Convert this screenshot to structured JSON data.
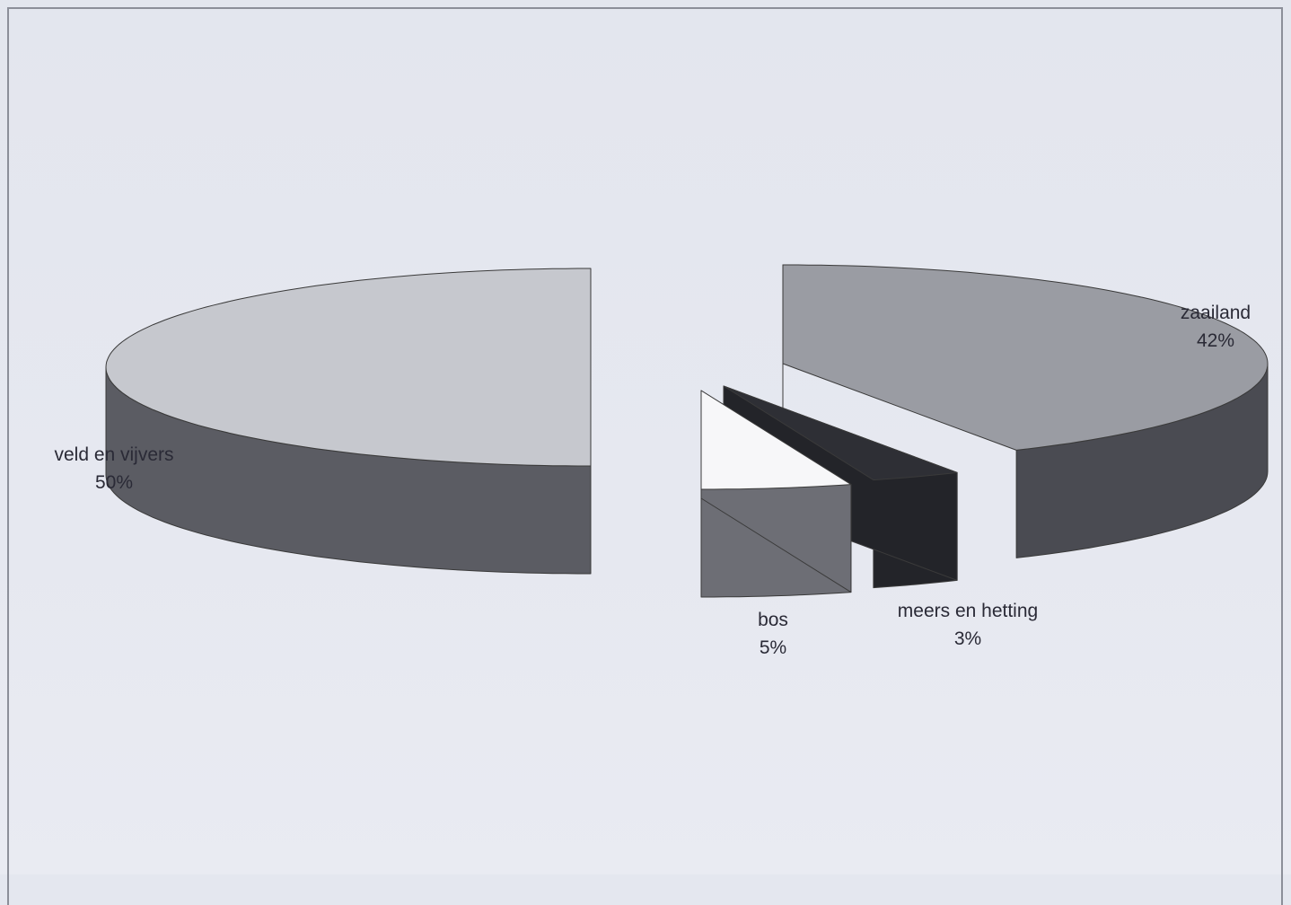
{
  "colors": {
    "background": "#e4e7ef",
    "frame": "#8c8f99",
    "outline": "#3a3a3a"
  },
  "chart_data": {
    "type": "pie",
    "style": "3d-exploded",
    "title": "",
    "slices": [
      {
        "label": "zaailand",
        "value": 42,
        "percent_label": "42%",
        "top_color": "#9a9ca3",
        "side_color": "#4a4b52"
      },
      {
        "label": "meers en hetting",
        "value": 3,
        "percent_label": "3%",
        "top_color": "#2e2f35",
        "side_color": "#232429"
      },
      {
        "label": "bos",
        "value": 5,
        "percent_label": "5%",
        "top_color": "#f7f7f9",
        "side_color": "#6d6e75"
      },
      {
        "label": "veld en vijvers",
        "value": 50,
        "percent_label": "50%",
        "top_color": "#c6c8ce",
        "side_color": "#5b5c63"
      }
    ],
    "legend": "none"
  }
}
